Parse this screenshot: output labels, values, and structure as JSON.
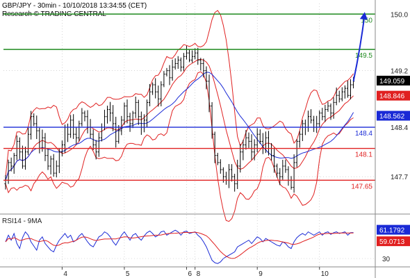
{
  "header": {
    "line1": "GBP/JPY - 30min - 10/10/2018 13:34:55 (CET)",
    "line2": "Research © TRADING CENTRAL"
  },
  "colors": {
    "candle": "#000000",
    "bollinger": "#e02020",
    "ma": "#1a2ad6",
    "level_green": "#1f8a1f",
    "level_blue": "#1a2ad6",
    "level_red": "#e02020",
    "arrow": "#1a2ad6",
    "grid": "#bbbbbb",
    "rsi": "#1a2ad6",
    "rsi_ma": "#e02020"
  },
  "chart_data": [
    {
      "type": "candlestick",
      "title": "GBP/JPY - 30min - 10/10/2018 13:34:55 (CET)",
      "ylim": [
        147.25,
        150.15
      ],
      "y_ticks": [
        {
          "value": 150.0,
          "label": "150.0"
        },
        {
          "value": 149.2,
          "label": "149.2"
        },
        {
          "value": 148.4,
          "label": "148.4"
        },
        {
          "value": 147.7,
          "label": "147.7"
        }
      ],
      "x_ticks": [
        {
          "bar": 20,
          "label": "4"
        },
        {
          "bar": 42,
          "label": "5"
        },
        {
          "bar": 64,
          "label": "6"
        },
        {
          "bar": 67,
          "label": "8"
        },
        {
          "bar": 89,
          "label": "9"
        },
        {
          "bar": 111,
          "label": "10"
        }
      ],
      "levels": [
        {
          "value": 150.0,
          "label": "150",
          "color": "#1f8a1f"
        },
        {
          "value": 149.5,
          "label": "149.5",
          "color": "#1f8a1f"
        },
        {
          "value": 148.4,
          "label": "148.4",
          "color": "#1a2ad6"
        },
        {
          "value": 148.1,
          "label": "148.1",
          "color": "#e02020"
        },
        {
          "value": 147.65,
          "label": "147.65",
          "color": "#e02020"
        }
      ],
      "price_tags": [
        {
          "value": 149.059,
          "label": "149.059",
          "bg": "#000000"
        },
        {
          "value": 148.846,
          "label": "148.846",
          "bg": "#e02020"
        },
        {
          "value": 148.562,
          "label": "148.562",
          "bg": "#1a2ad6"
        }
      ],
      "forecast_arrow": {
        "from_bar": 123,
        "from_value": 149.05,
        "to_bar": 127,
        "to_value": 150.0
      },
      "close_path": [
        147.65,
        147.9,
        147.85,
        148.0,
        148.2,
        148.05,
        147.85,
        148.05,
        148.3,
        148.55,
        148.45,
        148.35,
        148.1,
        148.25,
        148.0,
        147.85,
        147.95,
        147.75,
        147.85,
        148.05,
        148.15,
        148.4,
        148.3,
        148.5,
        148.3,
        148.25,
        148.45,
        148.6,
        148.55,
        148.4,
        148.3,
        148.15,
        148.05,
        148.25,
        148.4,
        148.55,
        148.65,
        148.6,
        148.45,
        148.2,
        148.35,
        148.5,
        148.7,
        148.55,
        148.45,
        148.6,
        148.75,
        148.55,
        148.4,
        148.5,
        148.75,
        148.9,
        149.0,
        148.9,
        148.8,
        149.0,
        149.15,
        149.2,
        149.1,
        149.25,
        149.3,
        149.35,
        149.25,
        149.4,
        149.45,
        149.35,
        149.4,
        149.45,
        149.35,
        149.3,
        149.2,
        149.05,
        148.7,
        148.3,
        148.0,
        147.9,
        147.8,
        147.7,
        147.65,
        147.8,
        147.7,
        147.6,
        147.85,
        148.05,
        148.15,
        148.25,
        148.2,
        148.05,
        148.15,
        148.3,
        148.2,
        148.1,
        148.25,
        148.1,
        148.0,
        147.85,
        147.75,
        147.7,
        147.85,
        147.8,
        147.65,
        147.55,
        147.9,
        148.2,
        148.3,
        148.45,
        148.4,
        148.55,
        148.5,
        148.4,
        148.45,
        148.6,
        148.55,
        148.65,
        148.7,
        148.6,
        148.75,
        148.85,
        148.8,
        148.9,
        148.95,
        148.85,
        149.0,
        149.05
      ]
    },
    {
      "type": "line",
      "title": "RSI14 - 9MA",
      "ylim": [
        20,
        80
      ],
      "y_ticks": [
        {
          "value": 30,
          "label": "30"
        }
      ],
      "series": [
        {
          "name": "RSI14",
          "last": 61.1792,
          "last_label": "61.1792"
        },
        {
          "name": "9MA",
          "last": 59.0713,
          "last_label": "59.0713"
        }
      ],
      "rsi_path": [
        50,
        58,
        52,
        60,
        48,
        42,
        55,
        62,
        58,
        50,
        45,
        40,
        52,
        56,
        48,
        44,
        40,
        38,
        46,
        52,
        56,
        60,
        55,
        58,
        50,
        52,
        57,
        60,
        55,
        50,
        46,
        44,
        50,
        56,
        58,
        62,
        60,
        56,
        50,
        46,
        52,
        58,
        62,
        57,
        52,
        58,
        60,
        55,
        52,
        57,
        61,
        63,
        60,
        56,
        58,
        62,
        63,
        58,
        60,
        62,
        64,
        62,
        58,
        62,
        63,
        60,
        61,
        62,
        58,
        55,
        50,
        44,
        36,
        28,
        25,
        24,
        26,
        30,
        32,
        34,
        36,
        38,
        44,
        46,
        48,
        50,
        52,
        48,
        52,
        56,
        54,
        50,
        54,
        52,
        50,
        48,
        46,
        45,
        50,
        48,
        44,
        42,
        50,
        55,
        58,
        60,
        58,
        62,
        60,
        58,
        60,
        62,
        58,
        61,
        62,
        59,
        61,
        62,
        60,
        61,
        62,
        58,
        61,
        61.1792
      ]
    }
  ]
}
